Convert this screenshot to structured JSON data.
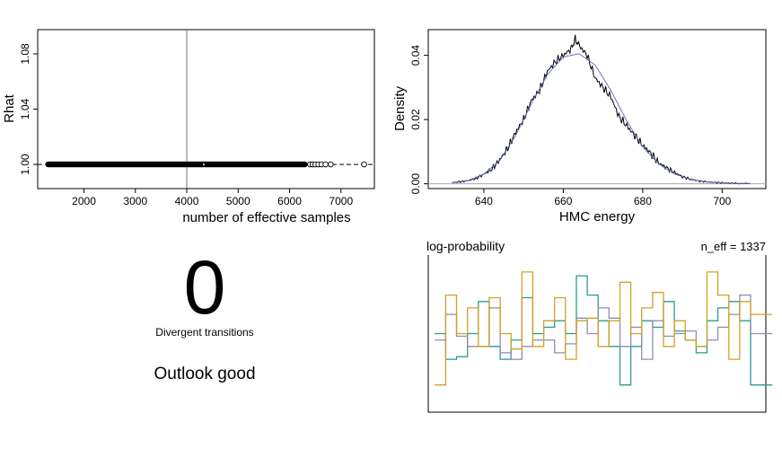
{
  "chart_data": [
    {
      "type": "scatter",
      "xlabel": "number of effective samples",
      "ylabel": "Rhat",
      "xlim": [
        1100,
        7650
      ],
      "ylim": [
        0.9825,
        1.0975
      ],
      "x_ticks": [
        2000,
        3000,
        4000,
        5000,
        6000,
        7000
      ],
      "y_ticks": [
        1.0,
        1.04,
        1.08
      ],
      "y_tick_labels": [
        "1.00",
        "1.04",
        "1.08"
      ],
      "reference_line": {
        "x": 4000,
        "y": 1.0
      },
      "points_dense_range": [
        1250,
        6350
      ],
      "points_sparse": [
        6400,
        6450,
        6500,
        6560,
        6620,
        6700,
        6800,
        7450
      ],
      "rhat_value": 1.0
    },
    {
      "type": "line",
      "xlabel": "HMC energy",
      "ylabel": "Density",
      "xlim": [
        626,
        711
      ],
      "ylim": [
        -0.0015,
        0.048
      ],
      "x_ticks": [
        640,
        660,
        680,
        700
      ],
      "y_ticks": [
        0.0,
        0.02,
        0.04
      ],
      "y_tick_labels": [
        "0.00",
        "0.02",
        "0.04"
      ],
      "series": [
        {
          "x": [
            632,
            634,
            636,
            638,
            640,
            642,
            644,
            646,
            648,
            650,
            652,
            654,
            656,
            658,
            660,
            662,
            663,
            664,
            666,
            668,
            670,
            672,
            674,
            676,
            678,
            680,
            682,
            684,
            686,
            688,
            690,
            692,
            694,
            696,
            698,
            700,
            702,
            704,
            707
          ],
          "y": [
            0.0004,
            0.0006,
            0.001,
            0.0016,
            0.003,
            0.0045,
            0.0075,
            0.011,
            0.016,
            0.02,
            0.026,
            0.029,
            0.035,
            0.038,
            0.04,
            0.042,
            0.045,
            0.043,
            0.04,
            0.033,
            0.03,
            0.027,
            0.021,
            0.018,
            0.015,
            0.012,
            0.0095,
            0.0065,
            0.005,
            0.0035,
            0.0022,
            0.0014,
            0.0009,
            0.0006,
            0.0004,
            0.0003,
            0.0002,
            0.0001,
            0.0001
          ]
        },
        {
          "x": [
            632,
            636,
            640,
            644,
            648,
            652,
            656,
            660,
            664,
            668,
            672,
            676,
            680,
            684,
            688,
            692,
            696,
            700,
            704,
            707
          ],
          "y": [
            0.0004,
            0.001,
            0.003,
            0.0072,
            0.015,
            0.025,
            0.034,
            0.0395,
            0.0405,
            0.037,
            0.029,
            0.0195,
            0.0115,
            0.0062,
            0.003,
            0.0014,
            0.0006,
            0.0003,
            0.0001,
            0.0001
          ]
        }
      ]
    },
    {
      "type": "line",
      "title": "log-probability",
      "annotation": "n_eff = 1337",
      "xlim": [
        0,
        31
      ],
      "ylim": [
        0,
        1
      ],
      "series": [
        {
          "color": "#2a9a94",
          "values": [
            0.5,
            0.3,
            0.32,
            0.5,
            0.75,
            0.4,
            0.3,
            0.45,
            0.78,
            0.5,
            0.55,
            0.6,
            0.5,
            0.95,
            0.8,
            0.6,
            0.4,
            0.1,
            0.4,
            0.6,
            0.55,
            0.75,
            0.52,
            0.45,
            0.35,
            0.6,
            0.7,
            0.75,
            0.6,
            0.1,
            0.1
          ]
        },
        {
          "color": "#8e8cb8",
          "values": [
            0.45,
            0.65,
            0.48,
            0.4,
            0.4,
            0.7,
            0.35,
            0.3,
            0.4,
            0.45,
            0.45,
            0.35,
            0.42,
            0.62,
            0.5,
            0.7,
            0.62,
            0.4,
            0.55,
            0.3,
            0.6,
            0.48,
            0.5,
            0.52,
            0.4,
            0.45,
            0.55,
            0.65,
            0.8,
            0.5,
            0.5
          ]
        },
        {
          "color": "#d4a024",
          "values": [
            0.1,
            0.8,
            0.5,
            0.7,
            0.4,
            0.78,
            0.5,
            0.38,
            0.98,
            0.4,
            0.6,
            0.78,
            0.3,
            0.6,
            0.62,
            0.4,
            0.6,
            0.9,
            0.5,
            0.7,
            0.82,
            0.4,
            0.6,
            0.45,
            0.4,
            0.98,
            0.8,
            0.3,
            0.75,
            0.65,
            0.65
          ]
        }
      ]
    }
  ],
  "divergent": {
    "count": "0",
    "label": "Divergent transitions"
  },
  "outlook": "Outlook good"
}
